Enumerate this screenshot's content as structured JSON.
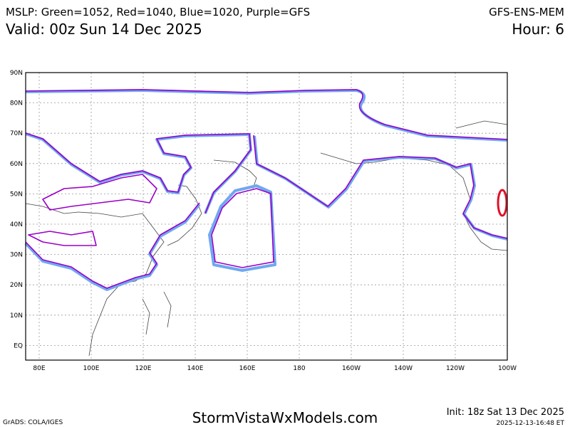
{
  "header": {
    "title": "MSLP: Green=1052, Red=1040, Blue=1020, Purple=GFS",
    "model": "GFS-ENS-MEM",
    "valid": "Valid: 00z Sun 14 Dec 2025",
    "hour": "Hour: 6"
  },
  "map": {
    "lat_labels": [
      "90N",
      "80N",
      "70N",
      "60N",
      "50N",
      "40N",
      "30N",
      "20N",
      "10N",
      "EQ"
    ],
    "lon_labels": [
      "80E",
      "100E",
      "120E",
      "140E",
      "160E",
      "180",
      "160W",
      "140W",
      "120W",
      "100W"
    ]
  },
  "footer": {
    "credit": "GrADS: COLA/IGES",
    "site": "StormVistaWxModels.com",
    "init": "Init: 18z Sat 13 Dec 2025",
    "timestamp": "2025-12-13-16:48 ET"
  }
}
